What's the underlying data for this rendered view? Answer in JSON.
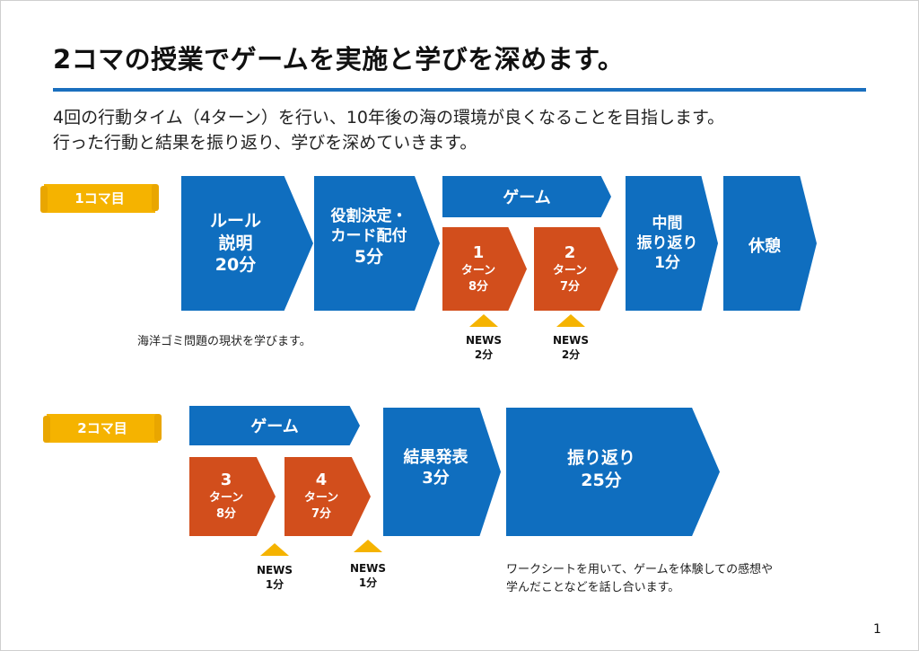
{
  "title": "2コマの授業でゲームを実施と学びを深めます。",
  "description": [
    "4回の行動タイム（4ターン）を行い、10年後の海の環境が良くなることを目指します。",
    "行った行動と結果を振り返り、学びを深めていきます。"
  ],
  "session1": {
    "tag": "1コマ目",
    "rule": [
      "ルール",
      "説明",
      "20分"
    ],
    "roles": [
      "役割決定・",
      "カード配付",
      "5分"
    ],
    "game_header": "ゲーム",
    "turn1": [
      "1",
      "ターン",
      "8分"
    ],
    "turn2": [
      "2",
      "ターン",
      "7分"
    ],
    "midreview": [
      "中間",
      "振り返り",
      "1分"
    ],
    "break": "休憩",
    "note": "海洋ゴミ問題の現状を学びます。",
    "news1": [
      "NEWS",
      "2分"
    ],
    "news2": [
      "NEWS",
      "2分"
    ]
  },
  "session2": {
    "tag": "2コマ目",
    "game_header": "ゲーム",
    "turn3": [
      "3",
      "ターン",
      "8分"
    ],
    "turn4": [
      "4",
      "ターン",
      "7分"
    ],
    "results": [
      "結果発表",
      "3分"
    ],
    "review": [
      "振り返り",
      "25分"
    ],
    "news3": [
      "NEWS",
      "1分"
    ],
    "news4": [
      "NEWS",
      "1分"
    ],
    "note": [
      "ワークシートを用いて、ゲームを体験しての感想や",
      "学んだことなどを話し合います。"
    ]
  },
  "page_number": "1",
  "colors": {
    "blue": "#0f6ebf",
    "orange": "#d24e1c",
    "yellow": "#f5b300",
    "rule": "#1a6fbe"
  }
}
